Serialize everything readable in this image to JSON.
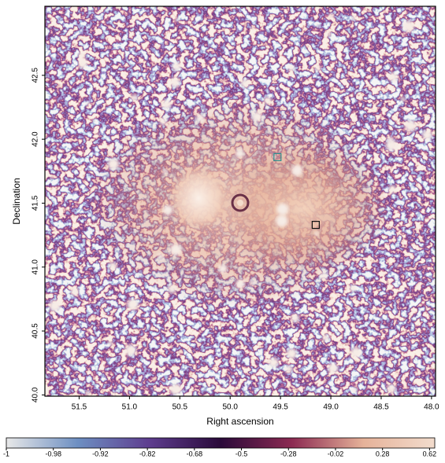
{
  "chart_data": {
    "type": "image",
    "xlabel": "Right ascension",
    "ylabel": "Declination",
    "xlim": [
      51.84,
      47.96
    ],
    "ylim": [
      39.99,
      43.04
    ],
    "xticks": [
      51.5,
      {
        "value": 51,
        "label": "51.0"
      },
      50.5,
      {
        "value": 50,
        "label": "50.0"
      },
      49.5,
      {
        "value": 49,
        "label": "49.0"
      },
      48.5,
      {
        "value": 48,
        "label": "48.0"
      }
    ],
    "yticks": [
      {
        "value": 40,
        "label": "40.0"
      },
      40.5,
      {
        "value": 41,
        "label": "41.0"
      },
      41.5,
      {
        "value": 42,
        "label": "42.0"
      },
      42.5
    ],
    "colorbar": {
      "clim": [
        -1,
        0.66
      ],
      "stretch": "sqrt",
      "ticks": [
        -1,
        -0.98,
        -0.92,
        -0.82,
        -0.68,
        -0.5,
        -0.28,
        -0.02,
        0.28,
        0.62
      ],
      "colors": [
        "#e8e8e8",
        "#6d8fc2",
        "#5e3d8f",
        "#2a0a3a",
        "#8c2a52",
        "#e6b299",
        "#f2dccd"
      ]
    },
    "markers": [
      {
        "x": 49.53,
        "y": 41.86,
        "color": "#2f8f8f"
      },
      {
        "x": 49.15,
        "y": 41.33,
        "color": "#111111"
      }
    ]
  }
}
